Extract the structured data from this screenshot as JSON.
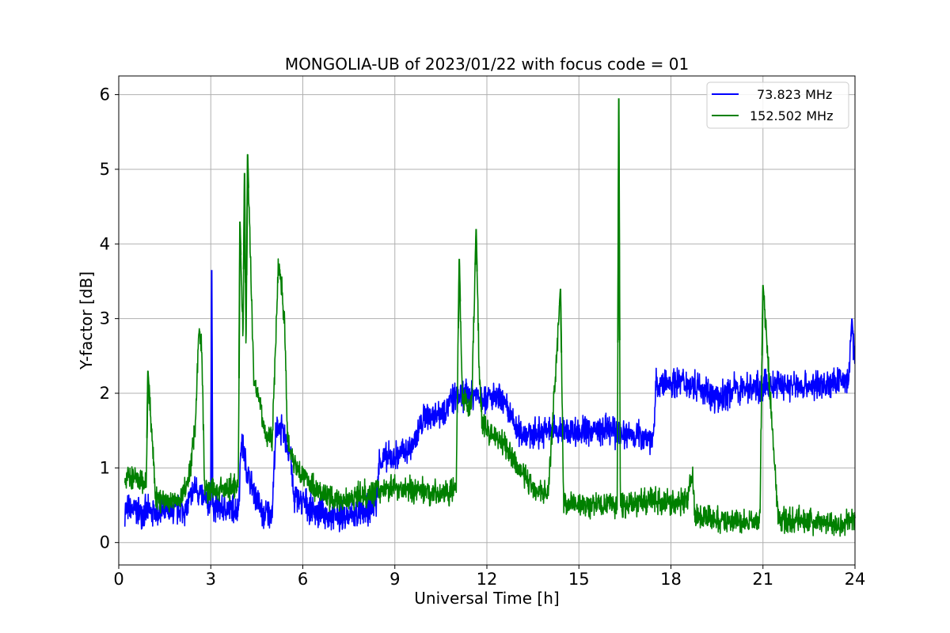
{
  "chart_data": {
    "type": "line",
    "title": "MONGOLIA-UB of 2023/01/22 with focus code = 01",
    "xlabel": "Universal Time [h]",
    "ylabel": "Y-factor [dB]",
    "xlim": [
      0,
      24
    ],
    "ylim": [
      -0.3,
      6.25
    ],
    "xticks": [
      0,
      3,
      6,
      9,
      12,
      15,
      18,
      21,
      24
    ],
    "xtick_labels": [
      "0",
      "3",
      "6",
      "9",
      "12",
      "15",
      "18",
      "21",
      "24"
    ],
    "yticks": [
      0,
      1,
      2,
      3,
      4,
      5,
      6
    ],
    "ytick_labels": [
      "0",
      "1",
      "2",
      "3",
      "4",
      "5",
      "6"
    ],
    "grid": true,
    "legend_position": "top-right",
    "series": [
      {
        "name": "73.823 MHz",
        "color": "#0000ff",
        "noise_amplitude": 0.18,
        "x": [
          0.2,
          1.0,
          1.5,
          2.2,
          2.5,
          2.8,
          3.0,
          3.03,
          3.06,
          3.5,
          3.9,
          4.0,
          4.2,
          4.5,
          4.7,
          4.9,
          5.0,
          5.1,
          5.2,
          5.4,
          5.6,
          5.7,
          6.0,
          6.5,
          7.0,
          7.5,
          8.0,
          8.4,
          8.5,
          9.0,
          9.5,
          10.0,
          10.5,
          11.0,
          11.5,
          12.0,
          12.5,
          13.0,
          13.5,
          14.0,
          15.0,
          16.0,
          16.5,
          17.0,
          17.45,
          17.5,
          18.0,
          18.5,
          19.0,
          19.5,
          20.0,
          21.0,
          22.0,
          23.0,
          23.5,
          23.8,
          23.9,
          24.0
        ],
        "y": [
          0.45,
          0.4,
          0.4,
          0.45,
          0.75,
          0.55,
          0.5,
          3.65,
          0.5,
          0.45,
          0.45,
          1.4,
          0.9,
          0.6,
          0.35,
          0.4,
          0.4,
          1.35,
          1.6,
          1.4,
          1.2,
          0.6,
          0.55,
          0.4,
          0.35,
          0.35,
          0.4,
          0.55,
          1.1,
          1.15,
          1.25,
          1.7,
          1.75,
          1.95,
          2.0,
          1.95,
          1.9,
          1.5,
          1.45,
          1.5,
          1.5,
          1.5,
          1.45,
          1.45,
          1.4,
          2.1,
          2.15,
          2.15,
          2.1,
          1.9,
          2.05,
          2.1,
          2.1,
          2.1,
          2.15,
          2.2,
          3.0,
          2.3
        ]
      },
      {
        "name": "152.502 MHz",
        "color": "#008000",
        "noise_amplitude": 0.15,
        "x": [
          0.2,
          0.5,
          0.9,
          0.95,
          1.2,
          1.5,
          2.0,
          2.3,
          2.5,
          2.6,
          2.7,
          2.8,
          3.0,
          3.5,
          3.9,
          3.95,
          4.05,
          4.1,
          4.15,
          4.2,
          4.4,
          4.6,
          4.8,
          5.0,
          5.1,
          5.2,
          5.3,
          5.4,
          5.5,
          5.7,
          6.0,
          6.5,
          7.0,
          7.5,
          8.0,
          8.5,
          9.0,
          9.5,
          10.0,
          10.5,
          11.0,
          11.1,
          11.2,
          11.5,
          11.65,
          11.75,
          11.85,
          12.0,
          12.5,
          13.0,
          13.5,
          14.0,
          14.4,
          14.5,
          15.0,
          15.5,
          16.0,
          16.25,
          16.3,
          16.35,
          16.5,
          17.0,
          17.5,
          18.0,
          18.5,
          18.7,
          18.8,
          19.5,
          20.0,
          20.5,
          20.9,
          21.0,
          21.5,
          22.0,
          22.5,
          23.0,
          23.5,
          24.0
        ],
        "y": [
          0.9,
          0.85,
          0.8,
          2.3,
          0.6,
          0.55,
          0.55,
          0.9,
          1.6,
          2.8,
          2.7,
          0.7,
          0.7,
          0.7,
          0.8,
          4.3,
          2.8,
          4.95,
          2.5,
          5.2,
          2.2,
          1.9,
          1.4,
          1.4,
          2.5,
          3.7,
          3.5,
          3.0,
          1.4,
          1.1,
          0.9,
          0.7,
          0.55,
          0.6,
          0.65,
          0.7,
          0.75,
          0.7,
          0.7,
          0.65,
          0.7,
          3.8,
          1.9,
          1.8,
          4.2,
          2.3,
          1.6,
          1.5,
          1.35,
          1.0,
          0.75,
          0.65,
          3.4,
          0.55,
          0.5,
          0.5,
          0.5,
          0.5,
          5.95,
          0.55,
          0.5,
          0.55,
          0.55,
          0.55,
          0.55,
          0.9,
          0.35,
          0.3,
          0.3,
          0.25,
          0.3,
          3.45,
          0.3,
          0.3,
          0.3,
          0.25,
          0.25,
          0.3
        ]
      }
    ]
  }
}
